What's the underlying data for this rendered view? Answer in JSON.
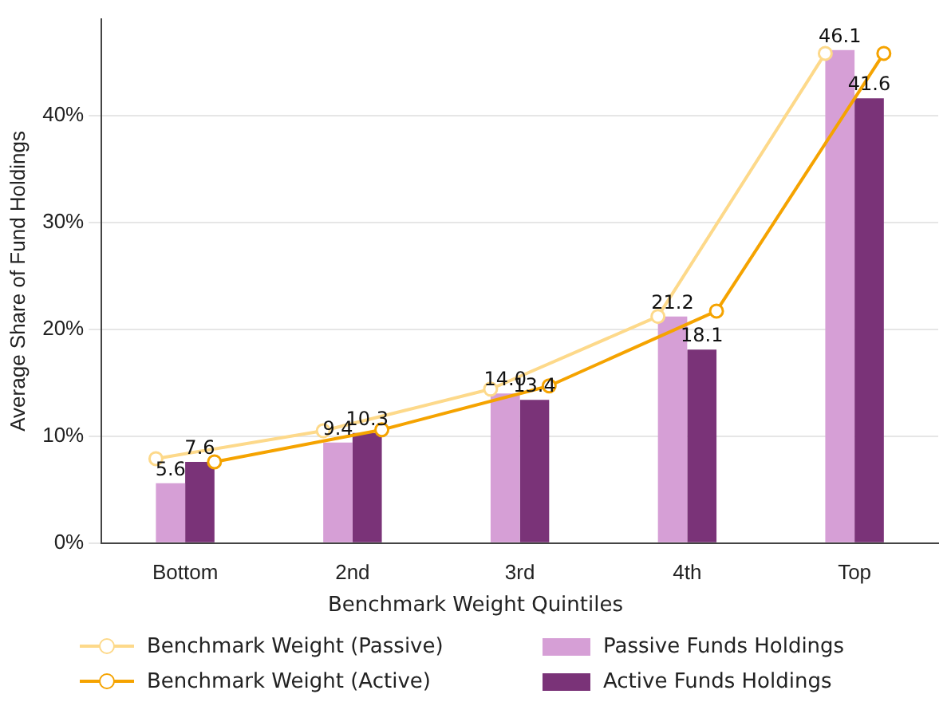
{
  "chart_data": {
    "type": "bar",
    "xlabel": "Benchmark Weight Quintiles",
    "ylabel": "Average Share of Fund Holdings",
    "categories": [
      "Bottom",
      "2nd",
      "3rd",
      "4th",
      "Top"
    ],
    "series": [
      {
        "name": "Benchmark Weight (Passive)",
        "type": "line",
        "color": "#fdd98a",
        "values": [
          7.9,
          10.5,
          14.4,
          21.2,
          45.8
        ]
      },
      {
        "name": "Benchmark Weight (Active)",
        "type": "line",
        "color": "#f5a300",
        "values": [
          7.6,
          10.6,
          14.7,
          21.7,
          45.8
        ]
      },
      {
        "name": "Passive Funds Holdings",
        "color": "#d69fd6",
        "values": [
          5.6,
          9.4,
          14.0,
          21.2,
          46.1
        ],
        "value_labels": [
          "5.6",
          "9.4",
          "14.0",
          "21.2",
          "46.1"
        ]
      },
      {
        "name": "Active Funds Holdings",
        "color": "#7a3378",
        "values": [
          7.6,
          10.3,
          13.4,
          18.1,
          41.6
        ],
        "value_labels": [
          "7.6",
          "10.3",
          "13.4",
          "18.1",
          "41.6"
        ]
      }
    ],
    "ylim": [
      0,
      49
    ],
    "yticks": [
      {
        "value": 0,
        "label": "0%"
      },
      {
        "value": 10,
        "label": "10%"
      },
      {
        "value": 20,
        "label": "20%"
      },
      {
        "value": 30,
        "label": "30%"
      },
      {
        "value": 40,
        "label": "40%"
      }
    ],
    "grid": "y",
    "legend": "bottom",
    "marker": "circle",
    "line_style": "solid"
  }
}
